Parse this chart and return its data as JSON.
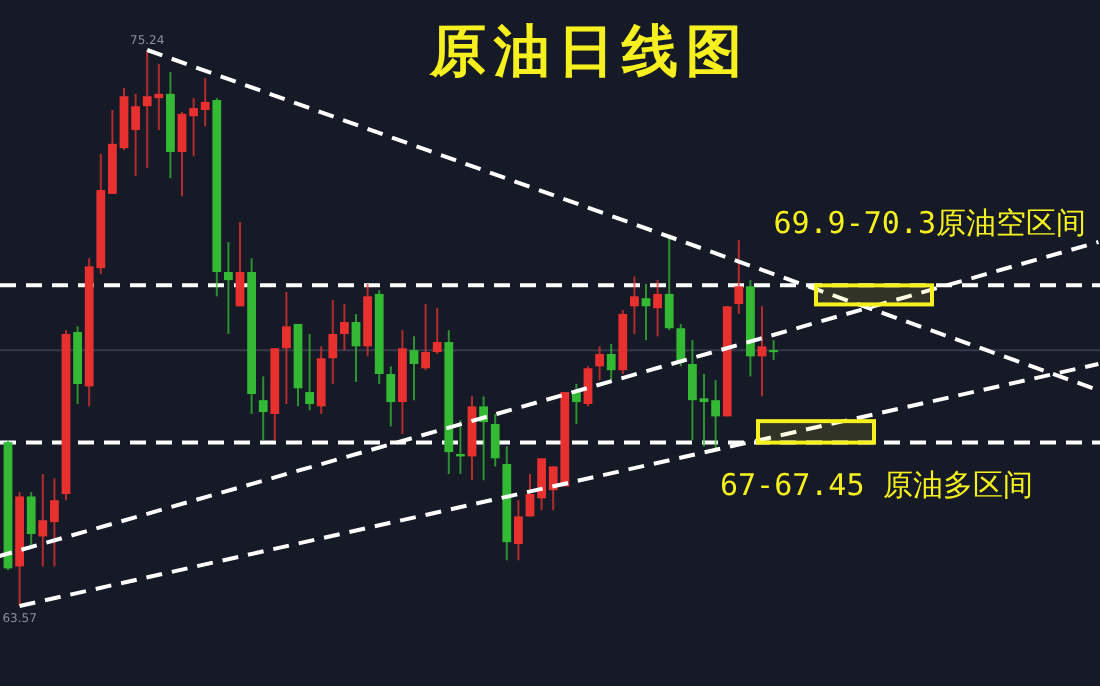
{
  "chart_data": {
    "type": "candlestick",
    "title": "原油日线图",
    "categories": [
      null,
      null,
      null,
      null,
      null,
      null,
      null,
      null,
      null,
      null,
      null,
      null,
      null,
      null,
      null,
      null,
      null,
      null,
      null,
      null,
      null,
      null,
      null,
      null,
      null,
      null,
      null,
      null,
      null,
      null,
      null,
      null,
      null,
      null,
      null,
      null,
      null,
      null,
      null,
      null,
      null,
      null,
      null,
      null,
      null,
      null,
      null,
      null,
      null,
      null,
      null,
      null,
      null,
      null,
      null,
      null,
      null,
      null,
      null,
      null,
      null,
      null,
      null,
      null,
      null,
      null,
      null,
      null,
      null,
      null,
      null,
      null,
      null,
      null,
      null,
      null,
      null,
      null,
      null,
      null,
      null,
      null,
      null,
      null,
      null,
      null,
      null,
      null,
      null,
      null,
      null,
      null,
      null,
      null,
      null,
      null
    ],
    "ohlc": [
      null,
      [
        67.01,
        67.05,
        64.32,
        64.36
      ],
      [
        64.4,
        65.96,
        63.57,
        65.87
      ],
      [
        65.87,
        65.96,
        64.82,
        65.08
      ],
      [
        65.03,
        66.34,
        64.4,
        65.37
      ],
      [
        65.33,
        66.25,
        64.4,
        65.79
      ],
      [
        65.92,
        69.36,
        65.79,
        69.28
      ],
      [
        69.32,
        69.44,
        67.81,
        68.23
      ],
      [
        68.18,
        70.87,
        67.76,
        70.7
      ],
      [
        70.66,
        73.06,
        70.54,
        72.3
      ],
      [
        72.22,
        73.98,
        72.22,
        73.27
      ],
      [
        73.18,
        74.44,
        73.14,
        74.27
      ],
      [
        73.56,
        74.32,
        72.59,
        74.06
      ],
      [
        74.06,
        75.24,
        72.76,
        74.27
      ],
      [
        74.23,
        74.95,
        73.56,
        74.32
      ],
      [
        74.32,
        74.78,
        72.55,
        73.1
      ],
      [
        73.1,
        73.94,
        72.17,
        73.9
      ],
      [
        73.85,
        74.23,
        73.01,
        74.02
      ],
      [
        73.98,
        74.65,
        73.64,
        74.15
      ],
      [
        74.19,
        74.23,
        70.07,
        70.58
      ],
      [
        70.58,
        71.21,
        69.28,
        70.41
      ],
      [
        69.86,
        71.63,
        69.86,
        70.58
      ],
      [
        70.58,
        70.87,
        67.6,
        68.02
      ],
      [
        67.89,
        68.39,
        67.05,
        67.64
      ],
      [
        67.6,
        68.98,
        67.05,
        68.98
      ],
      [
        68.98,
        70.16,
        67.81,
        69.44
      ],
      [
        69.49,
        69.49,
        67.76,
        68.14
      ],
      [
        68.06,
        69.28,
        67.68,
        67.81
      ],
      [
        67.76,
        69.02,
        67.6,
        68.77
      ],
      [
        68.77,
        69.99,
        68.23,
        69.28
      ],
      [
        69.28,
        69.91,
        68.94,
        69.53
      ],
      [
        69.53,
        69.7,
        68.27,
        69.02
      ],
      [
        69.02,
        70.33,
        68.81,
        70.07
      ],
      [
        70.12,
        70.2,
        68.23,
        68.44
      ],
      [
        68.44,
        68.6,
        67.34,
        67.85
      ],
      [
        67.85,
        69.36,
        67.18,
        68.98
      ],
      [
        68.94,
        69.23,
        67.89,
        68.65
      ],
      [
        68.56,
        69.91,
        68.52,
        68.9
      ],
      [
        68.9,
        69.82,
        68.86,
        69.11
      ],
      [
        69.11,
        69.36,
        66.34,
        66.8
      ],
      [
        66.76,
        67.47,
        66.34,
        66.71
      ],
      [
        66.71,
        67.97,
        66.21,
        67.76
      ],
      [
        67.76,
        67.97,
        66.21,
        67.43
      ],
      [
        67.39,
        67.6,
        66.5,
        66.67
      ],
      [
        66.55,
        66.92,
        64.53,
        64.91
      ],
      [
        64.87,
        65.79,
        64.53,
        65.45
      ],
      [
        65.45,
        66.34,
        65.45,
        65.92
      ],
      [
        65.83,
        66.67,
        65.58,
        66.67
      ],
      [
        66.0,
        66.5,
        65.58,
        66.5
      ],
      [
        66.08,
        68.06,
        66.08,
        68.06
      ],
      [
        68.06,
        68.23,
        67.39,
        67.85
      ],
      [
        67.81,
        68.6,
        67.76,
        68.56
      ],
      [
        68.6,
        69.02,
        68.31,
        68.86
      ],
      [
        68.86,
        69.07,
        68.31,
        68.52
      ],
      [
        68.52,
        69.78,
        68.44,
        69.7
      ],
      [
        69.86,
        70.49,
        69.28,
        70.07
      ],
      [
        70.03,
        70.33,
        69.15,
        69.86
      ],
      [
        69.82,
        70.41,
        69.23,
        70.12
      ],
      [
        70.12,
        71.33,
        69.36,
        69.4
      ],
      [
        69.4,
        69.49,
        68.6,
        68.69
      ],
      [
        68.65,
        69.15,
        67.05,
        67.89
      ],
      [
        67.93,
        68.44,
        66.92,
        67.85
      ],
      [
        67.89,
        68.31,
        66.84,
        67.55
      ],
      [
        67.55,
        69.86,
        67.55,
        69.86
      ],
      [
        69.91,
        71.25,
        69.7,
        70.28
      ],
      [
        70.28,
        70.41,
        68.39,
        68.81
      ],
      [
        68.81,
        69.86,
        67.97,
        69.02
      ],
      [
        68.94,
        69.15,
        68.73,
        68.9
      ],
      null,
      null,
      null,
      null,
      null,
      null,
      null,
      null,
      null,
      null,
      null,
      null,
      null,
      null,
      null,
      null,
      null,
      null,
      null,
      null,
      null,
      null,
      null,
      null,
      null,
      null,
      null,
      null
    ],
    "colors": [
      null,
      "#34b934",
      "#e8312f",
      "#34b934",
      "#e8312f",
      "#e8312f",
      "#e8312f",
      "#34b934",
      "#e8312f",
      "#e8312f",
      "#e8312f",
      "#e8312f",
      "#e8312f",
      "#e8312f",
      "#e8312f",
      "#34b934",
      "#e8312f",
      "#e8312f",
      "#e8312f",
      "#34b934",
      "#34b934",
      "#e8312f",
      "#34b934",
      "#34b934",
      "#e8312f",
      "#e8312f",
      "#34b934",
      "#34b934",
      "#e8312f",
      "#e8312f",
      "#e8312f",
      "#34b934",
      "#e8312f",
      "#34b934",
      "#34b934",
      "#e8312f",
      "#34b934",
      "#e8312f",
      "#e8312f",
      "#34b934",
      "#34b934",
      "#e8312f",
      "#34b934",
      "#34b934",
      "#34b934",
      "#e8312f",
      "#e8312f",
      "#e8312f",
      "#e8312f",
      "#e8312f",
      "#34b934",
      "#e8312f",
      "#e8312f",
      "#34b934",
      "#e8312f",
      "#e8312f",
      "#34b934",
      "#e8312f",
      "#34b934",
      "#34b934",
      "#34b934",
      "#34b934",
      "#34b934",
      "#e8312f",
      "#e8312f",
      "#34b934",
      "#e8312f",
      "#34b934",
      null,
      null,
      null,
      null,
      null,
      null,
      null,
      null,
      null,
      null,
      null,
      null,
      null,
      null,
      null,
      null,
      null,
      null,
      null,
      null,
      null,
      null,
      null,
      null,
      null,
      null,
      null,
      null
    ],
    "series": [
      {
        "type": "line",
        "color": "#ffffff",
        "line_style": "dashed",
        "values": [
          null,
          null,
          null,
          null,
          null,
          null,
          null,
          null,
          null,
          null,
          null,
          null,
          null,
          75.24,
          null,
          null,
          null,
          null,
          null,
          null,
          null,
          null,
          null,
          null,
          null,
          null,
          null,
          null,
          null,
          null,
          null,
          null,
          null,
          null,
          null,
          null,
          null,
          null,
          null,
          null,
          null,
          null,
          null,
          null,
          null,
          null,
          null,
          null,
          null,
          null,
          null,
          null,
          null,
          null,
          null,
          null,
          null,
          null,
          null,
          null,
          null,
          null,
          null,
          null,
          null,
          null,
          null,
          null,
          null,
          null,
          null,
          null,
          null,
          null,
          null,
          null,
          null,
          null,
          null,
          null,
          null,
          null,
          null,
          null,
          null,
          null,
          null,
          null,
          null,
          null,
          null,
          null,
          null,
          null,
          null,
          68.1
        ]
      },
      {
        "type": "line",
        "color": "#ffffff",
        "line_style": "dashed",
        "values": [
          64.6,
          null,
          null,
          null,
          null,
          null,
          null,
          null,
          null,
          null,
          null,
          null,
          null,
          null,
          null,
          null,
          null,
          null,
          null,
          null,
          null,
          null,
          null,
          null,
          null,
          null,
          null,
          null,
          null,
          null,
          null,
          null,
          null,
          null,
          null,
          null,
          null,
          null,
          null,
          null,
          null,
          null,
          null,
          null,
          null,
          null,
          null,
          null,
          null,
          null,
          null,
          null,
          null,
          null,
          null,
          null,
          null,
          null,
          null,
          null,
          null,
          null,
          null,
          null,
          null,
          null,
          null,
          null,
          null,
          null,
          null,
          null,
          null,
          null,
          null,
          null,
          null,
          null,
          null,
          null,
          null,
          null,
          null,
          null,
          null,
          null,
          null,
          null,
          null,
          null,
          null,
          null,
          null,
          null,
          null,
          71.21
        ]
      },
      {
        "type": "line",
        "color": "#ffffff",
        "line_style": "dashed",
        "values": [
          null,
          null,
          63.57,
          null,
          null,
          null,
          null,
          null,
          null,
          null,
          null,
          null,
          null,
          null,
          null,
          null,
          null,
          null,
          null,
          null,
          null,
          null,
          null,
          null,
          null,
          null,
          null,
          null,
          null,
          null,
          null,
          null,
          null,
          null,
          null,
          null,
          null,
          null,
          null,
          null,
          null,
          null,
          null,
          null,
          null,
          null,
          null,
          null,
          null,
          null,
          null,
          null,
          null,
          null,
          null,
          null,
          null,
          null,
          null,
          null,
          null,
          null,
          null,
          null,
          null,
          null,
          null,
          null,
          null,
          null,
          null,
          null,
          null,
          null,
          null,
          null,
          null,
          null,
          null,
          null,
          null,
          null,
          null,
          null,
          null,
          null,
          null,
          null,
          null,
          null,
          null,
          null,
          null,
          null,
          null,
          68.65
        ]
      }
    ],
    "ref_lines": [
      {
        "axis": "y",
        "value": 70.3,
        "color": "#ffffff",
        "line_style": "dashed"
      },
      {
        "axis": "y",
        "value": 67,
        "color": "#ffffff",
        "line_style": "dashed"
      },
      {
        "axis": "y",
        "value": 68.94,
        "color": "#343a4a",
        "line_style": "solid"
      }
    ],
    "bands": [
      {
        "axis": "y",
        "from": 69.9,
        "to": 70.3,
        "label": "69.9-70.3原油空区间",
        "color": "#f5f01e"
      },
      {
        "axis": "y",
        "from": 67,
        "to": 67.45,
        "label": "67-67.45 原油多区间",
        "color": "#f5f01e"
      }
    ],
    "annotations": [
      {
        "text": "75.24",
        "y": 75.24
      },
      {
        "text": "63.57",
        "y": 63.57
      }
    ]
  }
}
